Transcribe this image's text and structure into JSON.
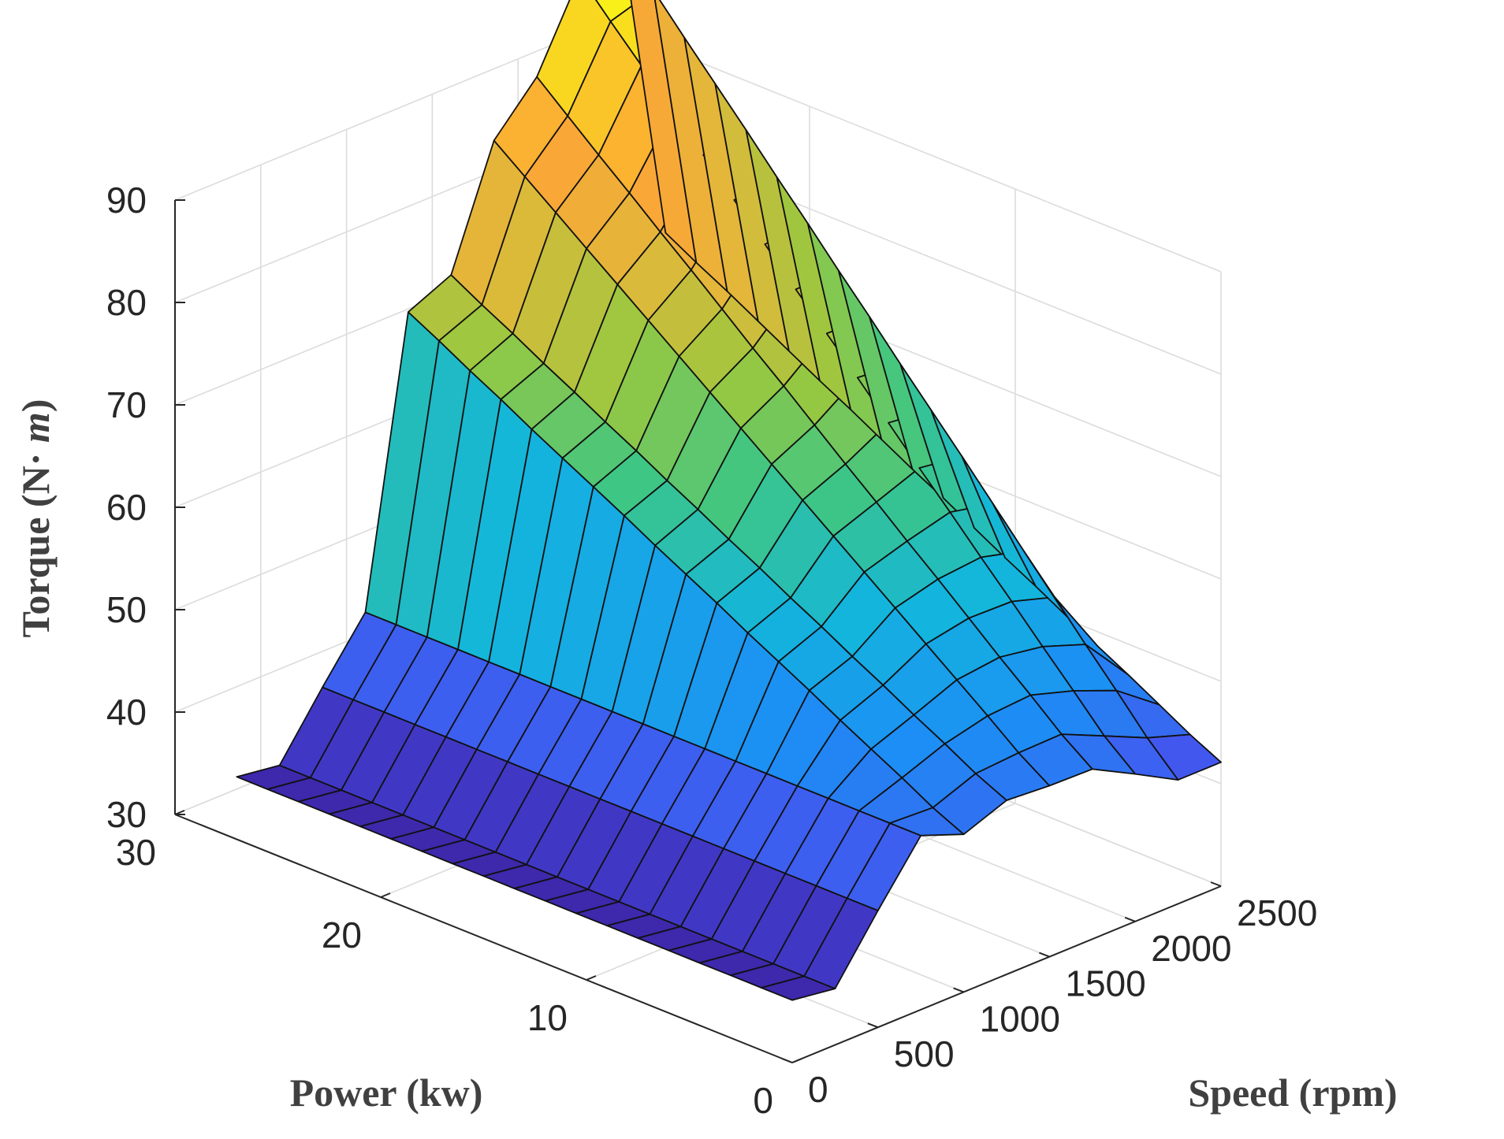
{
  "chart_data": {
    "type": "surface3d",
    "title": "",
    "xlabel": "Power (kw)",
    "ylabel": "Speed (rpm)",
    "zlabel": "Torque (N·m)",
    "zlabel_parts": [
      "Torque (N",
      "·",
      " m",
      ")"
    ],
    "xlim": [
      0,
      30
    ],
    "ylim": [
      0,
      2500
    ],
    "zlim": [
      30,
      90
    ],
    "x_ticks": [
      "0",
      "10",
      "20",
      "30"
    ],
    "y_ticks": [
      "0",
      "500",
      "1000",
      "1500",
      "2000",
      "2500"
    ],
    "z_ticks": [
      "30",
      "40",
      "50",
      "60",
      "70",
      "80",
      "90"
    ],
    "grid": true,
    "colormap": "parula",
    "colormap_stops": [
      "#3e26a8",
      "#4454ee",
      "#1c8ff5",
      "#13b6dc",
      "#3fc683",
      "#98c840",
      "#e0b93a",
      "#fca536",
      "#f9d521",
      "#f9fb15"
    ],
    "power_values": [
      0,
      1.5,
      3,
      4.5,
      6,
      7.5,
      9,
      10.5,
      12,
      13.5,
      15,
      16.5,
      18,
      19.5,
      21,
      22.5,
      24,
      25.5,
      27
    ],
    "speed_values": [
      0,
      250,
      500,
      750,
      1000,
      1250,
      1500,
      1750,
      2000,
      2250,
      2500
    ],
    "torque": [
      [
        36.1,
        35.5,
        41.4,
        47.0,
        45.4,
        47.0,
        46.7,
        46.6,
        44.4,
        42.1,
        42.1
      ],
      [
        36.1,
        35.5,
        41.4,
        47.0,
        46.8,
        48.4,
        48.7,
        48.8,
        46.9,
        45.0,
        43.6
      ],
      [
        36.1,
        35.5,
        41.4,
        47.0,
        48.5,
        50.1,
        51.1,
        51.4,
        50.1,
        48.4,
        45.3
      ],
      [
        36.1,
        35.5,
        41.4,
        47.0,
        50.1,
        51.7,
        53.4,
        53.9,
        53.2,
        51.7,
        47.0
      ],
      [
        36.1,
        35.5,
        41.4,
        47.0,
        51.7,
        53.4,
        55.7,
        56.5,
        56.4,
        55.1,
        48.6
      ],
      [
        36.1,
        35.5,
        41.4,
        47.0,
        53.4,
        55.0,
        58.0,
        59.1,
        59.5,
        58.4,
        50.3
      ],
      [
        36.1,
        35.5,
        41.4,
        47.0,
        55.0,
        56.7,
        60.3,
        61.6,
        62.7,
        61.8,
        52.0
      ],
      [
        36.1,
        35.5,
        41.4,
        47.0,
        56.6,
        58.3,
        62.6,
        64.2,
        65.8,
        65.2,
        53.6
      ],
      [
        36.1,
        35.5,
        41.4,
        47.0,
        58.3,
        60.0,
        64.9,
        66.7,
        69.0,
        68.5,
        55.3
      ],
      [
        36.1,
        35.5,
        41.4,
        47.0,
        59.9,
        61.6,
        67.2,
        69.3,
        72.2,
        71.8,
        57.0
      ],
      [
        36.1,
        35.5,
        41.4,
        47.0,
        61.5,
        63.3,
        69.5,
        71.9,
        75.3,
        75.2,
        58.6
      ],
      [
        36.1,
        35.5,
        41.4,
        47.0,
        63.2,
        64.9,
        71.8,
        74.4,
        78.4,
        78.5,
        60.3
      ],
      [
        36.1,
        35.5,
        41.4,
        47.0,
        64.8,
        66.6,
        74.1,
        77.0,
        81.6,
        81.9,
        62.0
      ],
      [
        36.1,
        35.5,
        41.4,
        47.0,
        66.4,
        68.2,
        76.4,
        79.6,
        84.7,
        85.2,
        63.6
      ],
      [
        36.1,
        35.5,
        41.4,
        47.0,
        68.0,
        69.9,
        78.7,
        82.1,
        87.9,
        88.6,
        65.3
      ],
      [
        36.1,
        35.5,
        41.4,
        47.0,
        69.7,
        71.5,
        81.0,
        84.7,
        91.0,
        91.9,
        67.0
      ],
      [
        36.1,
        35.5,
        41.4,
        47.0,
        71.3,
        73.2,
        83.3,
        87.2,
        94.2,
        95.2,
        68.7
      ],
      [
        36.1,
        35.5,
        41.4,
        47.0,
        73.0,
        74.8,
        85.6,
        89.8,
        97.3,
        98.6,
        70.3
      ],
      [
        36.1,
        35.5,
        41.4,
        47.0,
        74.6,
        76.5,
        87.9,
        92.4,
        100.5,
        101.9,
        72.0
      ]
    ]
  }
}
